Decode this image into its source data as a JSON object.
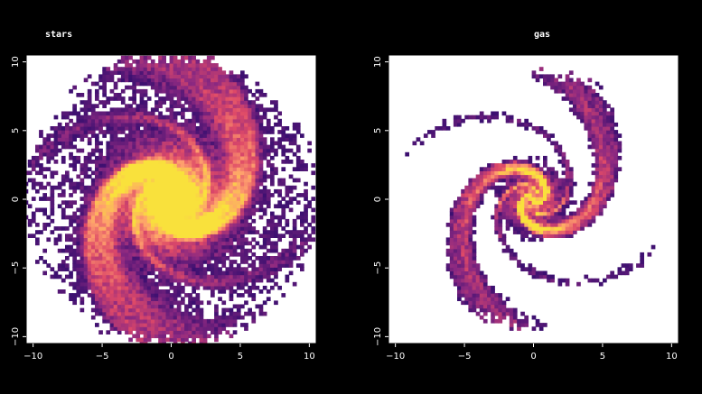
{
  "chart_data": [
    {
      "type": "heatmap",
      "title": "stars",
      "xlabel": "",
      "ylabel": "",
      "xlim": [
        -10.5,
        10.5
      ],
      "ylim": [
        -10.5,
        10.5
      ],
      "xticks": [
        -10,
        -5,
        0,
        5,
        10
      ],
      "yticks": [
        -10,
        -5,
        0,
        5,
        10
      ],
      "xtick_labels": [
        "−10",
        "−5",
        "0",
        "5",
        "10"
      ],
      "ytick_labels": [
        "−10",
        "−5",
        "0",
        "5",
        "10"
      ],
      "colormap": [
        "#3b0f70",
        "#8c2981",
        "#de4968",
        "#fe9f6d",
        "#f9e13c"
      ],
      "background": "#ffffff",
      "content": "face-on spiral galaxy stellar density, disk radius ~10.5, bright core"
    },
    {
      "type": "heatmap",
      "title": "gas",
      "xlabel": "",
      "ylabel": "",
      "xlim": [
        -10.5,
        10.5
      ],
      "ylim": [
        -10.5,
        10.5
      ],
      "xticks": [
        -10,
        -5,
        0,
        5,
        10
      ],
      "yticks": [
        -10,
        -5,
        0,
        5,
        10
      ],
      "xtick_labels": [
        "−10",
        "−5",
        "0",
        "5",
        "10"
      ],
      "ytick_labels": [
        "−10",
        "−5",
        "0",
        "5",
        "10"
      ],
      "colormap": [
        "#3b0f70",
        "#8c2981",
        "#de4968",
        "#fe9f6d",
        "#f9e13c"
      ],
      "background": "#ffffff",
      "content": "face-on spiral galaxy gas density, disk radius ~9, thin arms"
    }
  ]
}
